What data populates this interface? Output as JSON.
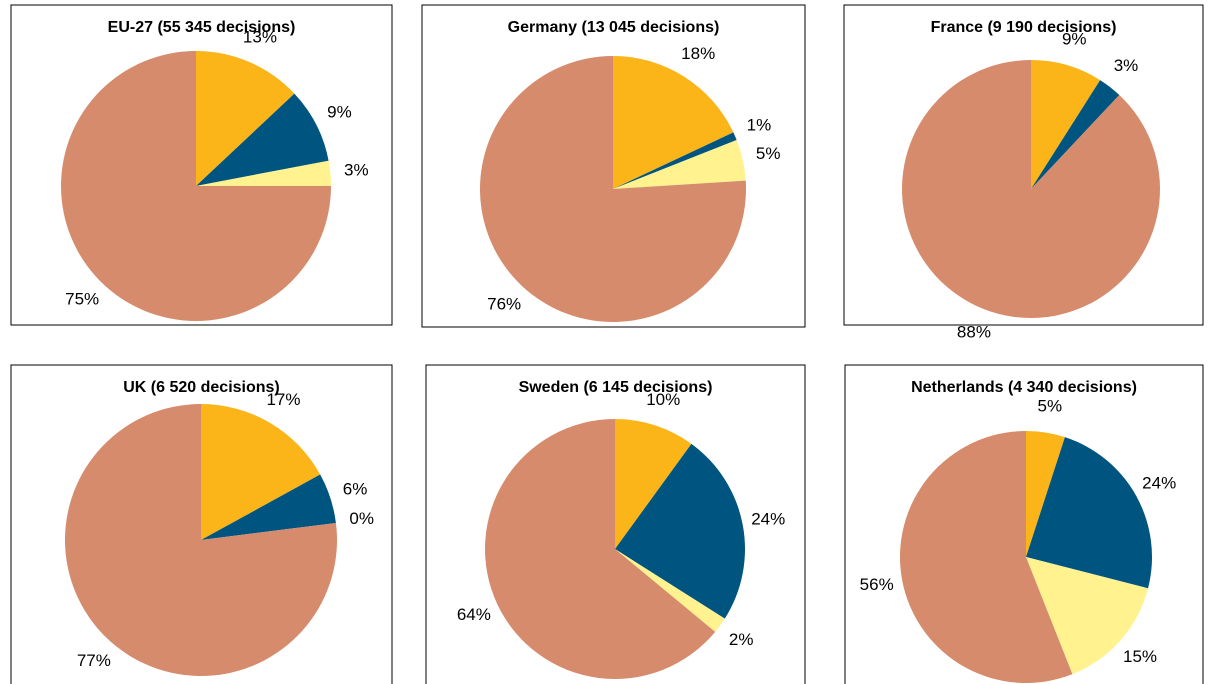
{
  "chart_data": [
    {
      "type": "pie",
      "title": "EU-27 (55 345 decisions)",
      "values": [
        13,
        9,
        3,
        75
      ],
      "value_labels": [
        "13%",
        "9%",
        "3%",
        "75%"
      ],
      "colors": [
        "#fbb518",
        "#005580",
        "#fff28f",
        "#d68b6c"
      ]
    },
    {
      "type": "pie",
      "title": "Germany (13 045 decisions)",
      "values": [
        18,
        1,
        5,
        76
      ],
      "value_labels": [
        "18%",
        "1%",
        "5%",
        "76%"
      ],
      "colors": [
        "#fbb518",
        "#005580",
        "#fff28f",
        "#d68b6c"
      ]
    },
    {
      "type": "pie",
      "title": "France (9 190 decisions)",
      "values": [
        9,
        3,
        88
      ],
      "value_labels": [
        "9%",
        "3%",
        "88%"
      ],
      "colors": [
        "#fbb518",
        "#005580",
        "#d68b6c"
      ]
    },
    {
      "type": "pie",
      "title": "UK (6 520 decisions)",
      "values": [
        17,
        6,
        0,
        77
      ],
      "value_labels": [
        "17%",
        "6%",
        "0%",
        "77%"
      ],
      "colors": [
        "#fbb518",
        "#005580",
        "#fff28f",
        "#d68b6c"
      ]
    },
    {
      "type": "pie",
      "title": "Sweden (6 145 decisions)",
      "values": [
        10,
        24,
        2,
        64
      ],
      "value_labels": [
        "10%",
        "24%",
        "2%",
        "64%"
      ],
      "colors": [
        "#fbb518",
        "#005580",
        "#fff28f",
        "#d68b6c"
      ]
    },
    {
      "type": "pie",
      "title": "Netherlands (4 340 decisions)",
      "values": [
        5,
        24,
        15,
        56
      ],
      "value_labels": [
        "5%",
        "24%",
        "15%",
        "56%"
      ],
      "colors": [
        "#fbb518",
        "#005580",
        "#fff28f",
        "#d68b6c"
      ]
    }
  ]
}
